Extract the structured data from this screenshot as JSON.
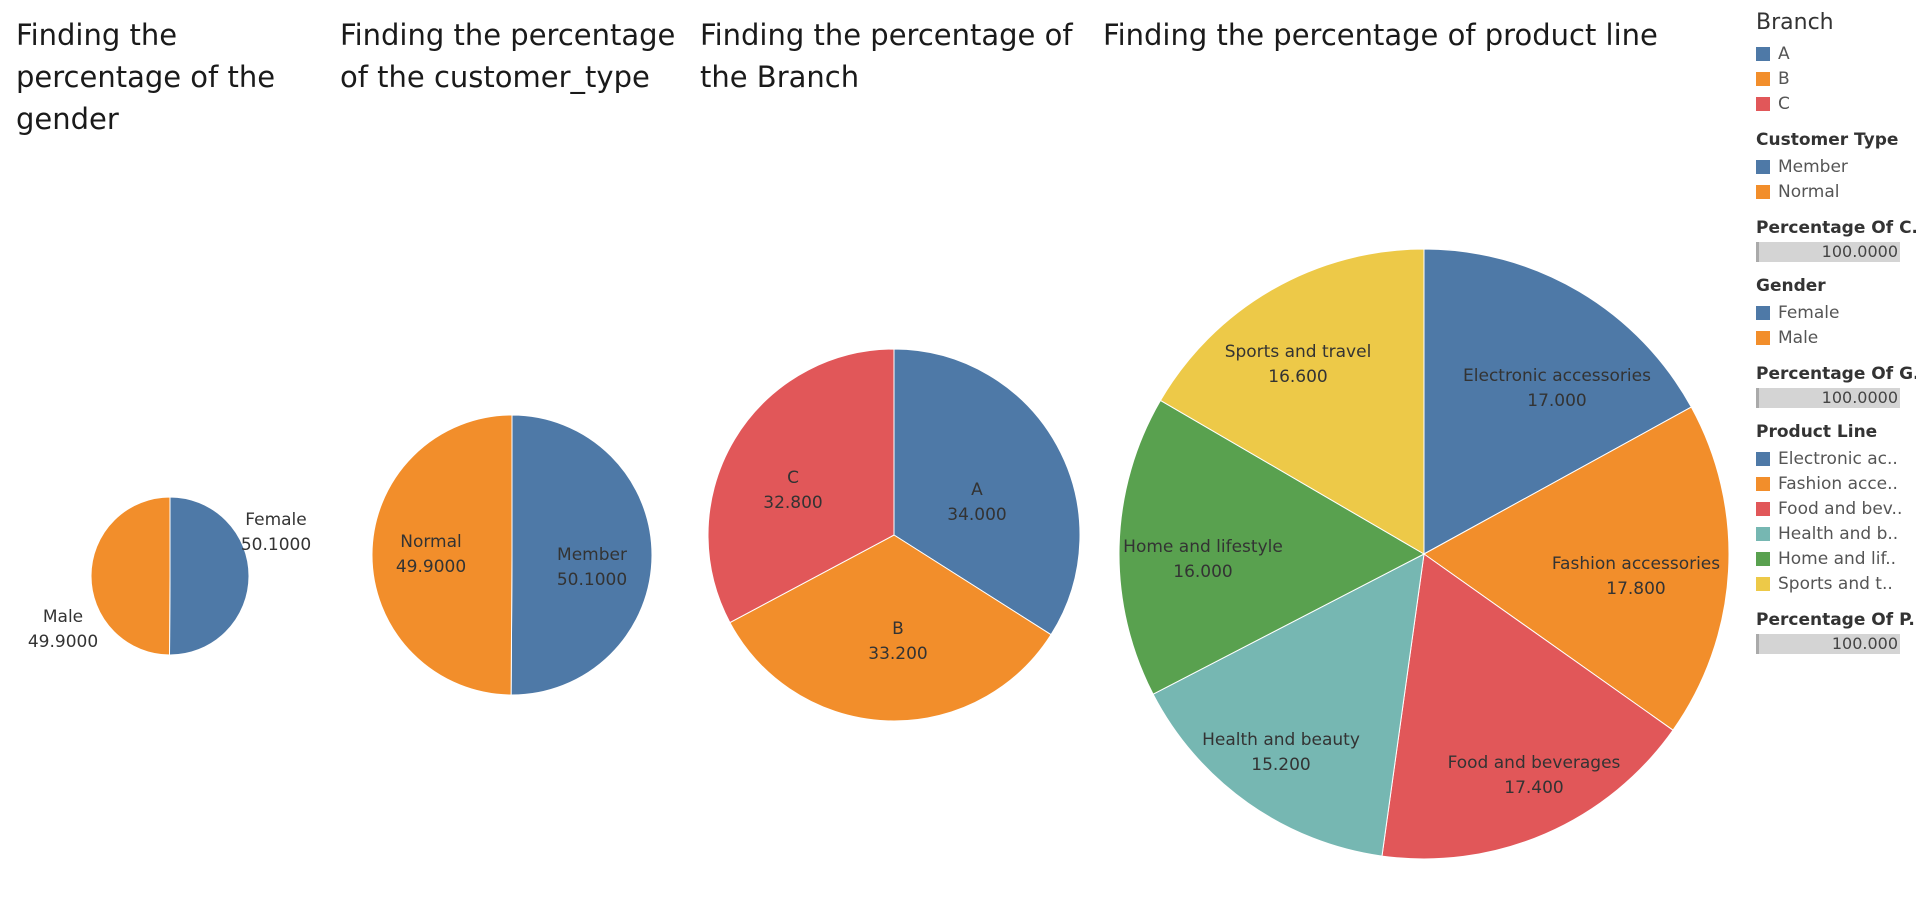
{
  "titles": {
    "gender": [
      "Finding the",
      "percentage of the",
      "gender"
    ],
    "customer_type": [
      "Finding the percentage",
      "of the customer_type"
    ],
    "branch": [
      "Finding the percentage of",
      "the Branch"
    ],
    "product_line": [
      "Finding the percentage of product line"
    ]
  },
  "colors": {
    "blue": "#4e79a7",
    "orange": "#f28e2b",
    "red": "#e15759",
    "teal": "#76b7b2",
    "green": "#59a14f",
    "yellow": "#edc948"
  },
  "chart_data": [
    {
      "type": "pie",
      "title": "Finding the percentage of the gender",
      "categories": [
        "Female",
        "Male"
      ],
      "values": [
        50.1,
        49.9
      ],
      "labels": [
        "50.1000",
        "49.9000"
      ],
      "colors": [
        "#4e79a7",
        "#f28e2b"
      ]
    },
    {
      "type": "pie",
      "title": "Finding the percentage of the customer_type",
      "categories": [
        "Member",
        "Normal"
      ],
      "values": [
        50.1,
        49.9
      ],
      "labels": [
        "50.1000",
        "49.9000"
      ],
      "colors": [
        "#4e79a7",
        "#f28e2b"
      ]
    },
    {
      "type": "pie",
      "title": "Finding the percentage of the Branch",
      "categories": [
        "A",
        "B",
        "C"
      ],
      "values": [
        34.0,
        33.2,
        32.8
      ],
      "labels": [
        "34.000",
        "33.200",
        "32.800"
      ],
      "colors": [
        "#4e79a7",
        "#f28e2b",
        "#e15759"
      ]
    },
    {
      "type": "pie",
      "title": "Finding the percentage of product line",
      "categories": [
        "Electronic accessories",
        "Fashion accessories",
        "Food and beverages",
        "Health and beauty",
        "Home and lifestyle",
        "Sports and travel"
      ],
      "values": [
        17.0,
        17.8,
        17.4,
        15.2,
        16.0,
        16.6
      ],
      "labels": [
        "17.000",
        "17.800",
        "17.400",
        "15.200",
        "16.000",
        "16.600"
      ],
      "colors": [
        "#4e79a7",
        "#f28e2b",
        "#e15759",
        "#76b7b2",
        "#59a14f",
        "#edc948"
      ]
    }
  ],
  "legend": {
    "branch": {
      "title": "Branch",
      "items": [
        {
          "label": "A",
          "color": "#4e79a7"
        },
        {
          "label": "B",
          "color": "#f28e2b"
        },
        {
          "label": "C",
          "color": "#e15759"
        }
      ]
    },
    "customer_type": {
      "title": "Customer Type",
      "items": [
        {
          "label": "Member",
          "color": "#4e79a7"
        },
        {
          "label": "Normal",
          "color": "#f28e2b"
        }
      ]
    },
    "pct_customer": {
      "title": "Percentage Of C..",
      "value": "100.0000"
    },
    "gender": {
      "title": "Gender",
      "items": [
        {
          "label": "Female",
          "color": "#4e79a7"
        },
        {
          "label": "Male",
          "color": "#f28e2b"
        }
      ]
    },
    "pct_gender": {
      "title": "Percentage Of G..",
      "value": "100.0000"
    },
    "product_line": {
      "title": "Product Line",
      "items": [
        {
          "label": "Electronic ac..",
          "color": "#4e79a7"
        },
        {
          "label": "Fashion acce..",
          "color": "#f28e2b"
        },
        {
          "label": "Food and bev..",
          "color": "#e15759"
        },
        {
          "label": "Health and b..",
          "color": "#76b7b2"
        },
        {
          "label": "Home and lif..",
          "color": "#59a14f"
        },
        {
          "label": "Sports and t..",
          "color": "#edc948"
        }
      ]
    },
    "pct_product": {
      "title": "Percentage Of P..",
      "value": "100.000"
    }
  }
}
